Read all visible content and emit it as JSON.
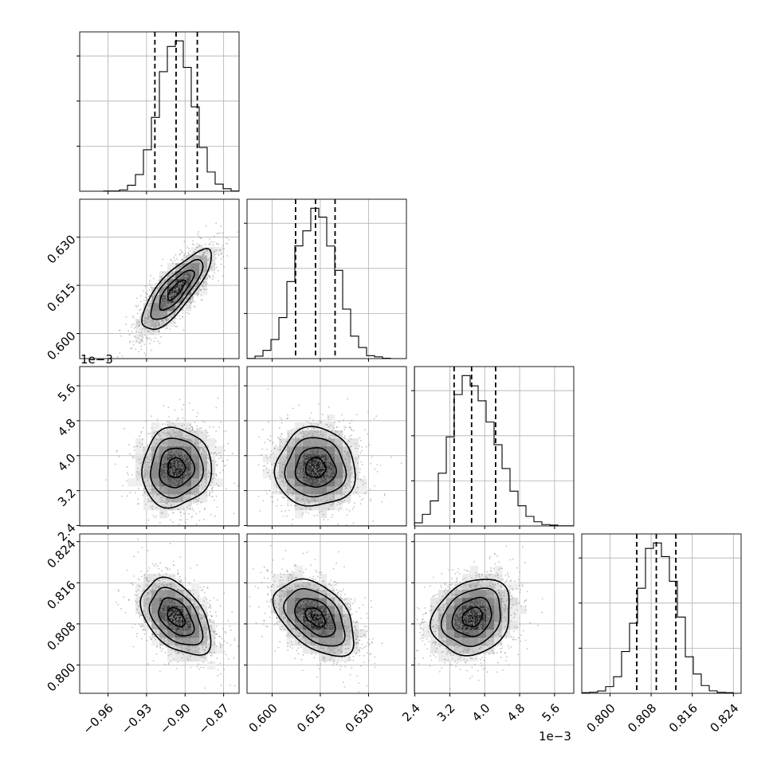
{
  "chart_data": {
    "type": "corner",
    "offset_label": "1e−3",
    "colors": {
      "hist": "#000000",
      "grid": "#b0b0b0",
      "points": "#909090",
      "frame": "#000000"
    },
    "grid": true,
    "params": [
      {
        "range": [
          -0.982,
          -0.858
        ],
        "ticks": [
          -0.96,
          -0.93,
          -0.9,
          -0.87
        ],
        "tick_labels": [
          "−0.96",
          "−0.93",
          "−0.90",
          "−0.87"
        ],
        "mean": -0.907,
        "sd": 0.0135,
        "quantiles": [
          -0.9235,
          -0.907,
          -0.8905
        ]
      },
      {
        "range": [
          0.5922,
          0.6418
        ],
        "ticks": [
          0.6,
          0.615,
          0.63
        ],
        "tick_labels": [
          "0.600",
          "0.615",
          "0.630"
        ],
        "mean": 0.6135,
        "sd": 0.0062,
        "quantiles": [
          0.6073,
          0.6135,
          0.6196
        ]
      },
      {
        "range": [
          2.39,
          6.04
        ],
        "ticks": [
          2.4,
          3.2,
          4.0,
          4.8,
          5.6
        ],
        "tick_labels": [
          "2.4",
          "3.2",
          "4.0",
          "4.8",
          "5.6"
        ],
        "mean": 3.72,
        "sd": 0.45,
        "quantiles": [
          3.3,
          3.7,
          4.25
        ]
      },
      {
        "range": [
          0.7945,
          0.8255
        ],
        "ticks": [
          0.8,
          0.808,
          0.816,
          0.824
        ],
        "tick_labels": [
          "0.800",
          "0.808",
          "0.816",
          "0.824"
        ],
        "mean": 0.8093,
        "sd": 0.0037,
        "quantiles": [
          0.8052,
          0.809,
          0.8128
        ]
      }
    ],
    "correlations": [
      [
        1.0,
        0.8,
        0.05,
        -0.45
      ],
      [
        0.8,
        1.0,
        0.0,
        -0.45
      ],
      [
        0.05,
        0.0,
        1.0,
        0.2
      ],
      [
        -0.45,
        -0.45,
        0.2,
        1.0
      ]
    ]
  }
}
